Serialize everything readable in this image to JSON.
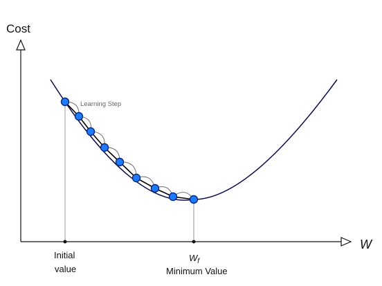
{
  "diagram": {
    "y_axis_label": "Cost",
    "x_axis_label": "W",
    "step_label": "Learning Step",
    "initial_label_line1": "Initial",
    "initial_label_line2": "value",
    "min_symbol": "W",
    "min_symbol_subscript": "f",
    "min_label": "Minimum Value",
    "colors": {
      "curve": "#0b0b4a",
      "step_path": "#000000",
      "step_arc": "#777777",
      "guide": "#999999",
      "axis": "#111111",
      "point_fill": "#1e7bff",
      "point_stroke": "#0a2a78"
    }
  }
}
